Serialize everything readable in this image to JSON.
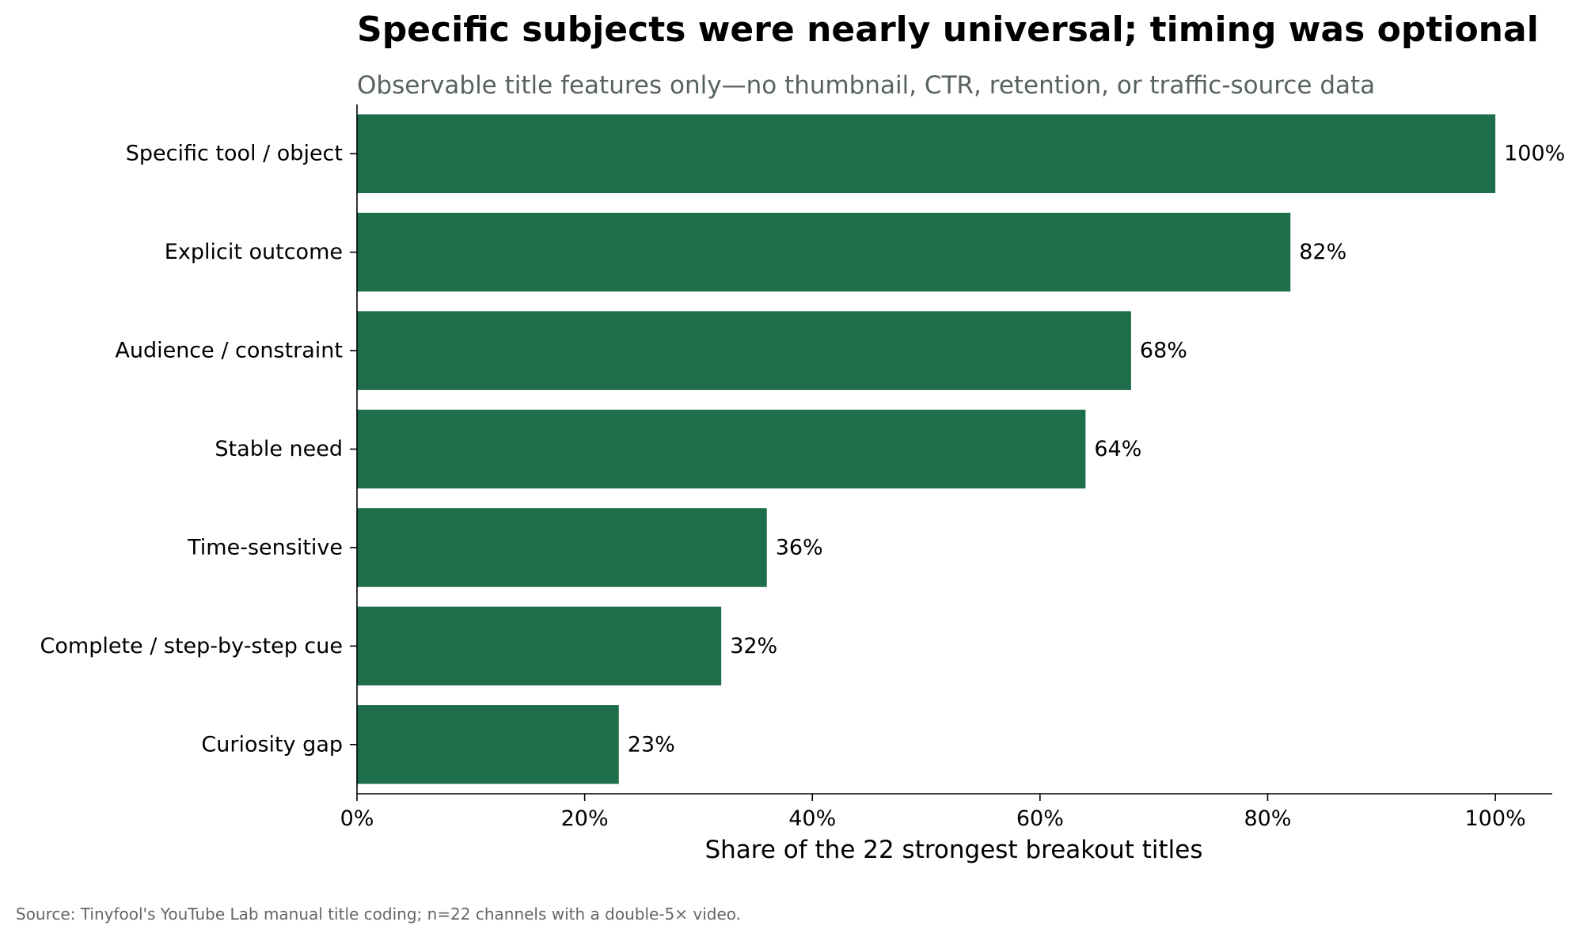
{
  "chart_data": {
    "type": "bar",
    "orientation": "horizontal",
    "title": "Specific subjects were nearly universal; timing was optional",
    "subtitle": "Observable title features only—no thumbnail, CTR, retention, or traffic-source data",
    "categories": [
      "Specific tool / object",
      "Explicit outcome",
      "Audience / constraint",
      "Stable need",
      "Time-sensitive",
      "Complete / step-by-step cue",
      "Curiosity gap"
    ],
    "values": [
      100,
      82,
      68,
      64,
      36,
      32,
      23
    ],
    "value_labels": [
      "100%",
      "82%",
      "68%",
      "64%",
      "36%",
      "32%",
      "23%"
    ],
    "xlabel": "Share of the 22 strongest breakout titles",
    "ylabel": "",
    "xlim": [
      0,
      105
    ],
    "xticks": [
      0,
      20,
      40,
      60,
      80,
      100
    ],
    "xtick_labels": [
      "0%",
      "20%",
      "40%",
      "60%",
      "80%",
      "100%"
    ],
    "grid": false,
    "legend": "none",
    "bar_color": "#1f6e4b",
    "source": "Source: Tinyfool's YouTube Lab manual title coding; n=22 channels with a double-5× video."
  }
}
